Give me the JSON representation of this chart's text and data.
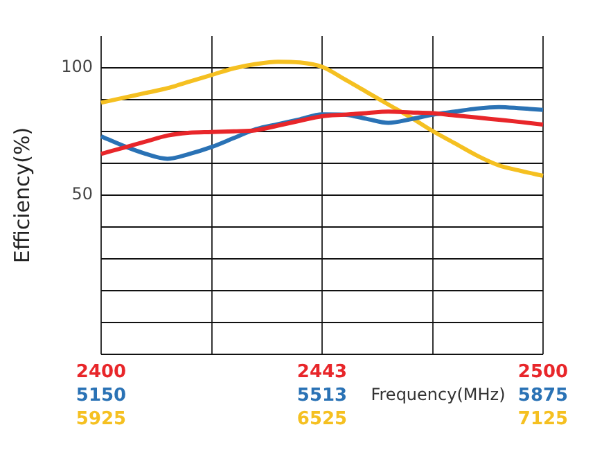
{
  "chart_data": {
    "type": "line",
    "ylabel": "Efficiency(%)",
    "xlabel": "Frequency(MHz)",
    "categories": [
      null,
      null,
      null,
      null,
      null,
      null,
      null,
      null,
      null,
      null,
      null,
      null,
      null,
      null,
      null,
      null,
      null,
      null,
      null,
      null,
      null
    ],
    "ylim": [
      -12.5,
      112.5
    ],
    "yticks": [
      {
        "value": -12.5,
        "label": null
      },
      {
        "value": 0,
        "label": null
      },
      {
        "value": 12.5,
        "label": null
      },
      {
        "value": 25,
        "label": null
      },
      {
        "value": 37.5,
        "label": null
      },
      50,
      {
        "value": 62.5,
        "label": null
      },
      {
        "value": 75,
        "label": null
      },
      {
        "value": 87.5,
        "label": null
      },
      100
    ],
    "annotations": [
      "2400",
      "2443",
      "2500",
      "5150",
      "5513",
      "5875",
      "5925",
      "6525",
      "7125"
    ],
    "grid": true,
    "marker": "none",
    "line_style": "solid",
    "series": [
      {
        "color": "#e8262a",
        "values": [
          66.2,
          68.6,
          71.0,
          73.4,
          74.5,
          74.8,
          75.1,
          75.5,
          77.3,
          79.2,
          81.0,
          81.6,
          82.2,
          82.8,
          82.5,
          82.2,
          81.3,
          80.5,
          79.6,
          78.7,
          77.7
        ]
      },
      {
        "color": "#2a72b5",
        "values": [
          73.1,
          69.4,
          66.3,
          64.3,
          66.2,
          68.9,
          72.4,
          75.9,
          77.9,
          79.8,
          81.7,
          81.6,
          80.0,
          78.4,
          79.8,
          81.6,
          82.8,
          84.0,
          84.6,
          84.1,
          83.5
        ]
      },
      {
        "color": "#f5c021",
        "values": [
          86.3,
          88.2,
          90.1,
          92.0,
          94.6,
          97.2,
          99.8,
          101.5,
          102.4,
          102.1,
          100.4,
          95.6,
          90.6,
          85.6,
          80.6,
          75.2,
          70.4,
          65.6,
          61.7,
          59.5,
          57.6
        ]
      }
    ]
  }
}
